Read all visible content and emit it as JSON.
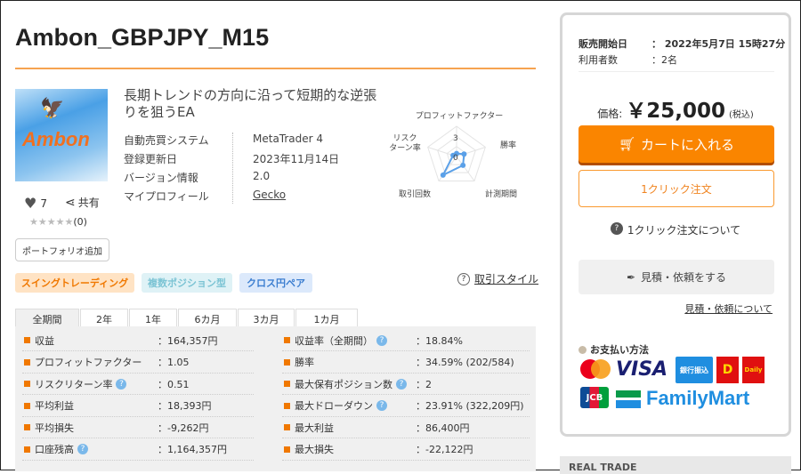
{
  "title": "Ambon_GBPJPY_M15",
  "thumbnail": {
    "logo_text": "Ambon"
  },
  "social": {
    "likes": "7",
    "share_label": "共有",
    "stars": "★★★★★",
    "rating_count": "(0)"
  },
  "portfolio_button": "ポートフォリオ追加",
  "description": "長期トレンドの方向に沿って短期的な逆張りを狙うEA",
  "info": [
    {
      "key": "自動売買システム",
      "value": "MetaTrader 4"
    },
    {
      "key": "登録更新日",
      "value": "2023年11月14日"
    },
    {
      "key": "バージョン情報",
      "value": "2.0"
    },
    {
      "key": "マイプロフィール",
      "value": "Gecko"
    }
  ],
  "tags": [
    {
      "label": "スイングトレーディング",
      "bg": "#ffe3c4",
      "color": "#f07800"
    },
    {
      "label": "複数ポジション型",
      "bg": "#dff2f6",
      "color": "#7cc4d4"
    },
    {
      "label": "クロス円ペア",
      "bg": "#dce9fb",
      "color": "#3c7ed0"
    }
  ],
  "style_link": "取引スタイル",
  "chart_data": {
    "type": "radar",
    "axes": [
      "プロフィットファクター",
      "勝率",
      "計測期間",
      "取引回数",
      "リスクリターン率"
    ],
    "axis_label_lines": [
      [
        "プロフィットファクター"
      ],
      [
        "勝率"
      ],
      [
        "計測期間"
      ],
      [
        "取引回数"
      ],
      [
        "リスク",
        "ターン率"
      ]
    ],
    "tick_labels": [
      "3",
      "0"
    ],
    "range": [
      0,
      5
    ],
    "values": [
      0.5,
      1.3,
      1.8,
      3.8,
      0.6
    ],
    "color": "#5aa0e8"
  },
  "tabs": [
    "全期間",
    "2年",
    "1年",
    "6カ月",
    "3カ月",
    "1カ月"
  ],
  "stats_left": [
    {
      "label": "収益",
      "value": "：164,357円",
      "help": false
    },
    {
      "label": "プロフィットファクター",
      "value": "：1.05",
      "help": false
    },
    {
      "label": "リスクリターン率",
      "value": "：0.51",
      "help": true
    },
    {
      "label": "平均利益",
      "value": "：18,393円",
      "help": false
    },
    {
      "label": "平均損失",
      "value": "：-9,262円",
      "help": false
    },
    {
      "label": "口座残高",
      "value": "：1,164,357円",
      "help": true
    }
  ],
  "stats_right": [
    {
      "label": "収益率（全期間）",
      "value": "：18.84%",
      "help": true
    },
    {
      "label": "勝率",
      "value": "：34.59% (202/584)",
      "help": false
    },
    {
      "label": "最大保有ポジション数",
      "value": "：2",
      "help": true
    },
    {
      "label": "最大ドローダウン",
      "value": "：23.91% (322,209円)",
      "help": true
    },
    {
      "label": "最大利益",
      "value": "：86,400円",
      "help": false
    },
    {
      "label": "最大損失",
      "value": "：-22,122円",
      "help": false
    }
  ],
  "panel": {
    "sale_start_label": "販売開始日",
    "sale_start_value": "： 2022年5月7日 15時27分",
    "users_label": "利用者数",
    "users_value": "：2名",
    "price_label": "価格:",
    "price": "￥25,000",
    "tax": "(税込)",
    "cart_button": "カートに入れる",
    "oneclick_button": "1クリック注文",
    "oneclick_help": "1クリック注文について",
    "quote_button": "見積・依頼をする",
    "quote_link": "見積・依頼について",
    "payment_title": "お支払い方法",
    "payment_methods": [
      "mastercard",
      "VISA",
      "銀行振込",
      "D",
      "Daily",
      "JCB",
      "FamilyMart"
    ]
  },
  "real_trade": "REAL TRADE"
}
